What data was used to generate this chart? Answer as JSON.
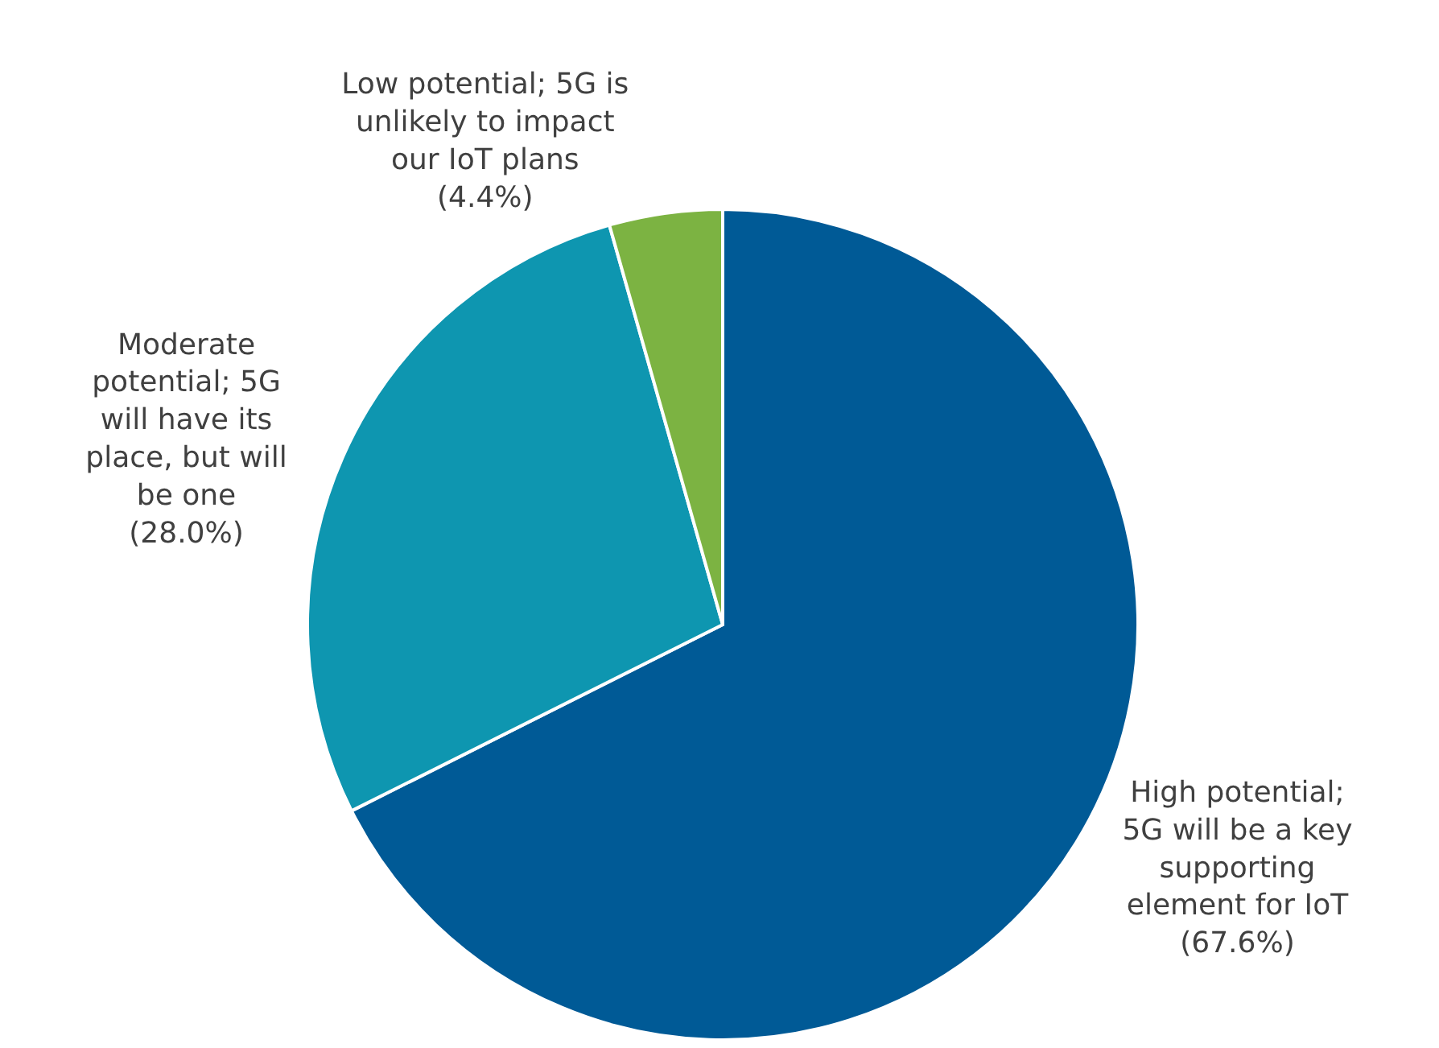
{
  "chart_data": {
    "type": "pie",
    "categories": [
      "High potential;\n5G will be a key\nsupporting\nelement for IoT",
      "Moderate\npotential; 5G\nwill have its\nplace, but will\nbe one",
      "Low potential; 5G is\nunlikely to impact\nour IoT plans"
    ],
    "values": [
      67.6,
      28.0,
      4.4
    ],
    "value_labels": [
      "(67.6%)",
      "(28.0%)",
      "(4.4%)"
    ],
    "colors": [
      "#005a96",
      "#0e96b0",
      "#7cb342"
    ],
    "legend": false
  }
}
